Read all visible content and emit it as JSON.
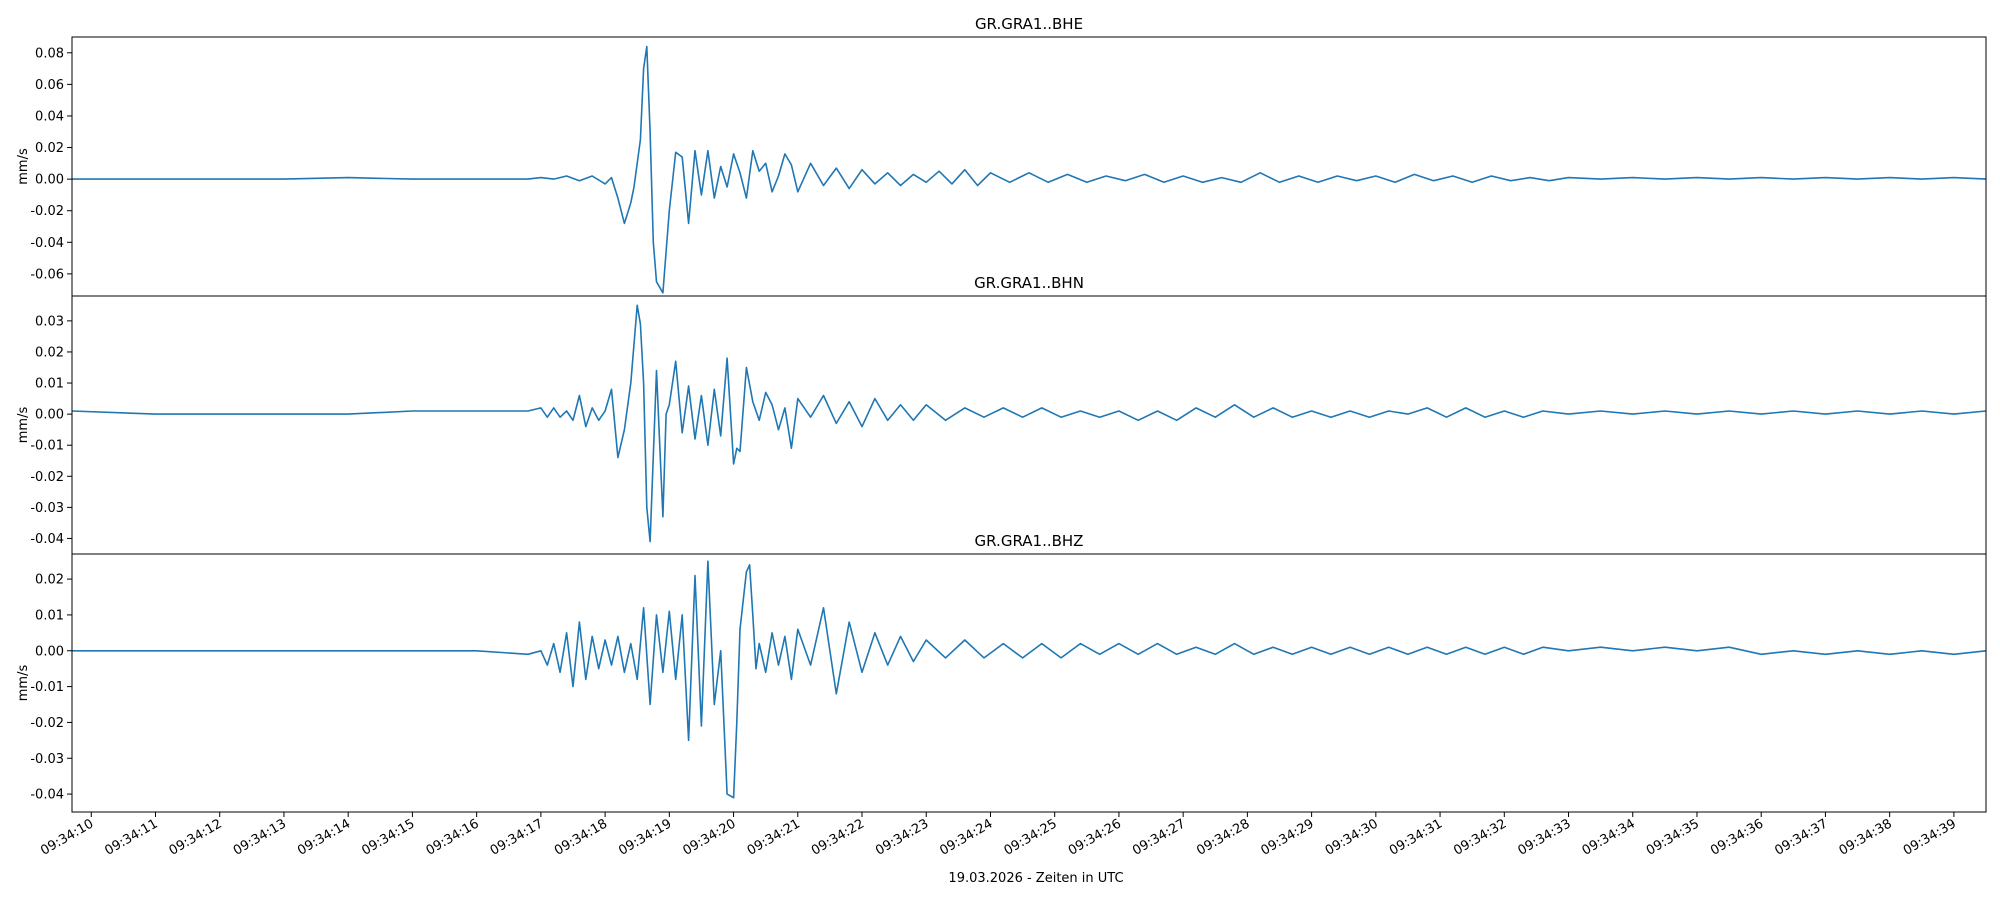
{
  "chart_data": {
    "type": "line",
    "xlabel": "19.03.2026 - Zeiten in UTC",
    "x_ticks": [
      "09:34:10",
      "09:34:11",
      "09:34:12",
      "09:34:13",
      "09:34:14",
      "09:34:15",
      "09:34:16",
      "09:34:17",
      "09:34:18",
      "09:34:19",
      "09:34:20",
      "09:34:21",
      "09:34:22",
      "09:34:23",
      "09:34:24",
      "09:34:25",
      "09:34:26",
      "09:34:27",
      "09:34:28",
      "09:34:29",
      "09:34:30",
      "09:34:31",
      "09:34:32",
      "09:34:33",
      "09:34:34",
      "09:34:35",
      "09:34:36",
      "09:34:37",
      "09:34:38",
      "09:34:39"
    ],
    "xlim": [
      "09:34:09.7",
      "09:34:39.5"
    ],
    "line_color": "#1f77b4",
    "grid": false,
    "panels": [
      {
        "title": "GR.GRA1..BHE",
        "ylabel": "mm/s",
        "ylim": [
          -0.074,
          0.09
        ],
        "y_ticks": [
          -0.06,
          -0.04,
          -0.02,
          0.0,
          0.02,
          0.04,
          0.06,
          0.08
        ],
        "y_tick_labels": [
          "-0.06",
          "-0.04",
          "-0.02",
          "0.00",
          "0.02",
          "0.04",
          "0.06",
          "0.08"
        ],
        "series": [
          {
            "t": [
              9.7,
              11,
              12,
              13,
              14,
              15,
              16,
              16.8,
              17.0,
              17.2,
              17.4,
              17.6,
              17.8,
              18.0,
              18.1,
              18.2,
              18.3,
              18.4,
              18.45,
              18.5,
              18.55,
              18.6,
              18.65,
              18.7,
              18.75,
              18.8,
              18.9,
              19.0,
              19.1,
              19.2,
              19.3,
              19.4,
              19.5,
              19.6,
              19.7,
              19.8,
              19.9,
              20.0,
              20.1,
              20.2,
              20.3,
              20.4,
              20.5,
              20.6,
              20.7,
              20.8,
              20.9,
              21.0,
              21.2,
              21.4,
              21.6,
              21.8,
              22.0,
              22.2,
              22.4,
              22.6,
              22.8,
              23.0,
              23.2,
              23.4,
              23.6,
              23.8,
              24.0,
              24.3,
              24.6,
              24.9,
              25.2,
              25.5,
              25.8,
              26.1,
              26.4,
              26.7,
              27.0,
              27.3,
              27.6,
              27.9,
              28.2,
              28.5,
              28.8,
              29.1,
              29.4,
              29.7,
              30.0,
              30.3,
              30.6,
              30.9,
              31.2,
              31.5,
              31.8,
              32.1,
              32.4,
              32.7,
              33.0,
              33.5,
              34.0,
              34.5,
              35.0,
              35.5,
              36.0,
              36.5,
              37.0,
              37.5,
              38.0,
              38.5,
              39.0,
              39.5
            ],
            "v": [
              0.0,
              0.0,
              0.0,
              0.0,
              0.001,
              0.0,
              0.0,
              0.0,
              0.001,
              0.0,
              0.002,
              -0.001,
              0.002,
              -0.003,
              0.001,
              -0.012,
              -0.028,
              -0.015,
              -0.005,
              0.01,
              0.025,
              0.07,
              0.084,
              0.03,
              -0.04,
              -0.065,
              -0.072,
              -0.02,
              0.017,
              0.014,
              -0.028,
              0.018,
              -0.01,
              0.018,
              -0.012,
              0.008,
              -0.005,
              0.016,
              0.004,
              -0.012,
              0.018,
              0.005,
              0.01,
              -0.008,
              0.002,
              0.016,
              0.009,
              -0.008,
              0.01,
              -0.004,
              0.007,
              -0.006,
              0.006,
              -0.003,
              0.004,
              -0.004,
              0.003,
              -0.002,
              0.005,
              -0.003,
              0.006,
              -0.004,
              0.004,
              -0.002,
              0.004,
              -0.002,
              0.003,
              -0.002,
              0.002,
              -0.001,
              0.003,
              -0.002,
              0.002,
              -0.002,
              0.001,
              -0.002,
              0.004,
              -0.002,
              0.002,
              -0.002,
              0.002,
              -0.001,
              0.002,
              -0.002,
              0.003,
              -0.001,
              0.002,
              -0.002,
              0.002,
              -0.001,
              0.001,
              -0.001,
              0.001,
              0.0,
              0.001,
              0.0,
              0.001,
              0.0,
              0.001,
              0.0,
              0.001,
              0.0,
              0.001,
              0.0,
              0.001,
              0.0
            ]
          }
        ]
      },
      {
        "title": "GR.GRA1..BHN",
        "ylabel": "mm/s",
        "ylim": [
          -0.045,
          0.038
        ],
        "y_ticks": [
          -0.04,
          -0.03,
          -0.02,
          -0.01,
          0.0,
          0.01,
          0.02,
          0.03
        ],
        "y_tick_labels": [
          "-0.04",
          "-0.03",
          "-0.02",
          "-0.01",
          "0.00",
          "0.01",
          "0.02",
          "0.03"
        ],
        "series": [
          {
            "t": [
              9.7,
              11,
              12,
              13,
              14,
              15,
              16,
              16.8,
              17.0,
              17.1,
              17.2,
              17.3,
              17.4,
              17.5,
              17.6,
              17.7,
              17.8,
              17.9,
              18.0,
              18.1,
              18.2,
              18.3,
              18.4,
              18.5,
              18.55,
              18.6,
              18.65,
              18.7,
              18.8,
              18.9,
              18.95,
              19.0,
              19.1,
              19.2,
              19.3,
              19.4,
              19.5,
              19.6,
              19.7,
              19.8,
              19.9,
              20.0,
              20.05,
              20.1,
              20.2,
              20.3,
              20.4,
              20.5,
              20.6,
              20.7,
              20.8,
              20.9,
              21.0,
              21.2,
              21.4,
              21.6,
              21.8,
              22.0,
              22.2,
              22.4,
              22.6,
              22.8,
              23.0,
              23.3,
              23.6,
              23.9,
              24.2,
              24.5,
              24.8,
              25.1,
              25.4,
              25.7,
              26.0,
              26.3,
              26.6,
              26.9,
              27.2,
              27.5,
              27.8,
              28.1,
              28.4,
              28.7,
              29.0,
              29.3,
              29.6,
              29.9,
              30.2,
              30.5,
              30.8,
              31.1,
              31.4,
              31.7,
              32.0,
              32.3,
              32.6,
              33.0,
              33.5,
              34.0,
              34.5,
              35.0,
              35.5,
              36.0,
              36.5,
              37.0,
              37.5,
              38.0,
              38.5,
              39.0,
              39.5
            ],
            "v": [
              0.001,
              0.0,
              0.0,
              0.0,
              0.0,
              0.001,
              0.001,
              0.001,
              0.002,
              -0.001,
              0.002,
              -0.001,
              0.001,
              -0.002,
              0.006,
              -0.004,
              0.002,
              -0.002,
              0.001,
              0.008,
              -0.014,
              -0.005,
              0.01,
              0.035,
              0.029,
              0.01,
              -0.03,
              -0.041,
              0.014,
              -0.033,
              0.0,
              0.003,
              0.017,
              -0.006,
              0.009,
              -0.008,
              0.006,
              -0.01,
              0.008,
              -0.007,
              0.018,
              -0.016,
              -0.011,
              -0.012,
              0.015,
              0.004,
              -0.002,
              0.007,
              0.003,
              -0.005,
              0.002,
              -0.011,
              0.005,
              -0.001,
              0.006,
              -0.003,
              0.004,
              -0.004,
              0.005,
              -0.002,
              0.003,
              -0.002,
              0.003,
              -0.002,
              0.002,
              -0.001,
              0.002,
              -0.001,
              0.002,
              -0.001,
              0.001,
              -0.001,
              0.001,
              -0.002,
              0.001,
              -0.002,
              0.002,
              -0.001,
              0.003,
              -0.001,
              0.002,
              -0.001,
              0.001,
              -0.001,
              0.001,
              -0.001,
              0.001,
              0.0,
              0.002,
              -0.001,
              0.002,
              -0.001,
              0.001,
              -0.001,
              0.001,
              0.0,
              0.001,
              0.0,
              0.001,
              0.0,
              0.001,
              0.0,
              0.001,
              0.0,
              0.001,
              0.0,
              0.001,
              0.0,
              0.001
            ]
          }
        ]
      },
      {
        "title": "GR.GRA1..BHZ",
        "ylabel": "mm/s",
        "ylim": [
          -0.045,
          0.027
        ],
        "y_ticks": [
          -0.04,
          -0.03,
          -0.02,
          -0.01,
          0.0,
          0.01,
          0.02
        ],
        "y_tick_labels": [
          "-0.04",
          "-0.03",
          "-0.02",
          "-0.01",
          "0.00",
          "0.01",
          "0.02"
        ],
        "series": [
          {
            "t": [
              9.7,
              11,
              12,
              13,
              14,
              15,
              16,
              16.8,
              17.0,
              17.1,
              17.2,
              17.3,
              17.4,
              17.5,
              17.6,
              17.7,
              17.8,
              17.9,
              18.0,
              18.1,
              18.2,
              18.3,
              18.4,
              18.5,
              18.6,
              18.7,
              18.8,
              18.9,
              19.0,
              19.1,
              19.2,
              19.3,
              19.4,
              19.5,
              19.6,
              19.7,
              19.8,
              19.9,
              20.0,
              20.05,
              20.1,
              20.2,
              20.25,
              20.3,
              20.35,
              20.4,
              20.5,
              20.6,
              20.7,
              20.8,
              20.9,
              21.0,
              21.2,
              21.4,
              21.6,
              21.8,
              22.0,
              22.2,
              22.4,
              22.6,
              22.8,
              23.0,
              23.3,
              23.6,
              23.9,
              24.2,
              24.5,
              24.8,
              25.1,
              25.4,
              25.7,
              26.0,
              26.3,
              26.6,
              26.9,
              27.2,
              27.5,
              27.8,
              28.1,
              28.4,
              28.7,
              29.0,
              29.3,
              29.6,
              29.9,
              30.2,
              30.5,
              30.8,
              31.1,
              31.4,
              31.7,
              32.0,
              32.3,
              32.6,
              33.0,
              33.5,
              34.0,
              34.5,
              35.0,
              35.5,
              36.0,
              36.5,
              37.0,
              37.5,
              38.0,
              38.5,
              39.0,
              39.5
            ],
            "v": [
              0.0,
              0.0,
              0.0,
              0.0,
              0.0,
              0.0,
              0.0,
              -0.001,
              0.0,
              -0.004,
              0.002,
              -0.006,
              0.005,
              -0.01,
              0.008,
              -0.008,
              0.004,
              -0.005,
              0.003,
              -0.004,
              0.004,
              -0.006,
              0.002,
              -0.008,
              0.012,
              -0.015,
              0.01,
              -0.006,
              0.011,
              -0.008,
              0.01,
              -0.025,
              0.021,
              -0.021,
              0.025,
              -0.015,
              0.0,
              -0.04,
              -0.041,
              -0.02,
              0.006,
              0.022,
              0.024,
              0.01,
              -0.005,
              0.002,
              -0.006,
              0.005,
              -0.004,
              0.004,
              -0.008,
              0.006,
              -0.004,
              0.012,
              -0.012,
              0.008,
              -0.006,
              0.005,
              -0.004,
              0.004,
              -0.003,
              0.003,
              -0.002,
              0.003,
              -0.002,
              0.002,
              -0.002,
              0.002,
              -0.002,
              0.002,
              -0.001,
              0.002,
              -0.001,
              0.002,
              -0.001,
              0.001,
              -0.001,
              0.002,
              -0.001,
              0.001,
              -0.001,
              0.001,
              -0.001,
              0.001,
              -0.001,
              0.001,
              -0.001,
              0.001,
              -0.001,
              0.001,
              -0.001,
              0.001,
              -0.001,
              0.001,
              0.0,
              0.001,
              0.0,
              0.001,
              0.0,
              0.001,
              -0.001,
              0.0,
              -0.001,
              0.0,
              -0.001,
              0.0,
              -0.001,
              0.0
            ]
          }
        ]
      }
    ]
  }
}
